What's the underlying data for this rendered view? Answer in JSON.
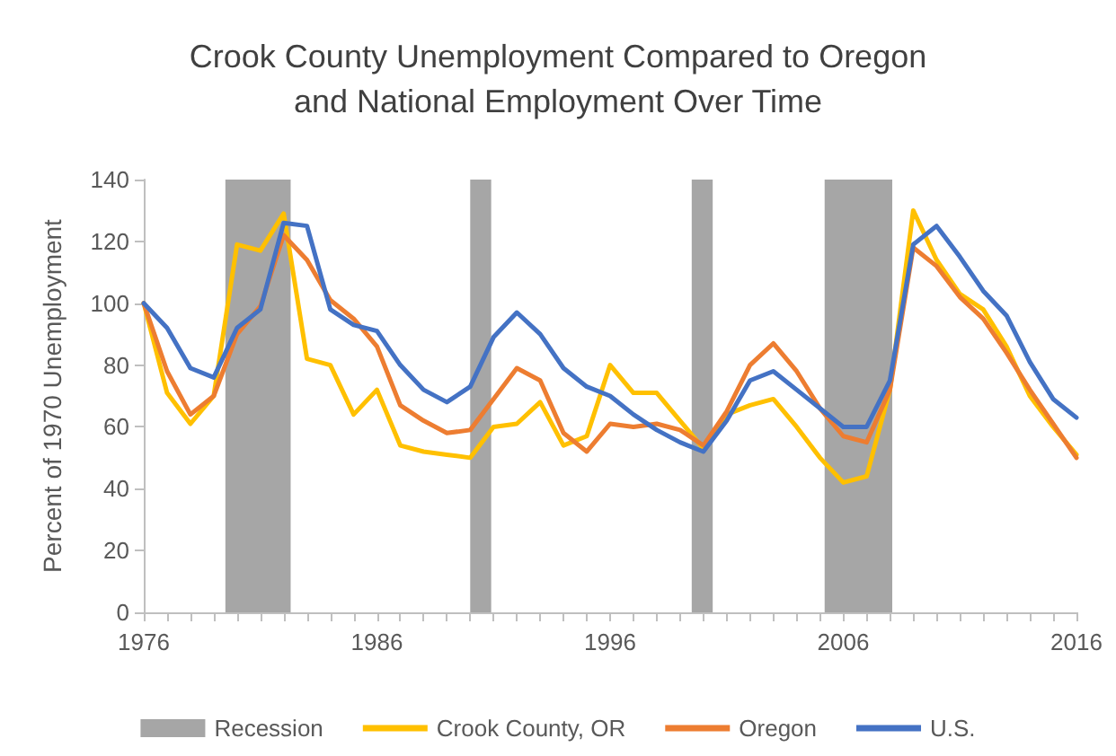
{
  "chart_data": {
    "type": "line",
    "title": "Crook County Unemployment Compared to Oregon\nand National Employment Over Time",
    "ylabel": "Percent of 1970 Unemployment",
    "x": [
      1976,
      1977,
      1978,
      1979,
      1980,
      1981,
      1982,
      1983,
      1984,
      1985,
      1986,
      1987,
      1988,
      1989,
      1990,
      1991,
      1992,
      1993,
      1994,
      1995,
      1996,
      1997,
      1998,
      1999,
      2000,
      2001,
      2002,
      2003,
      2004,
      2005,
      2006,
      2007,
      2008,
      2009,
      2010,
      2011,
      2012,
      2013,
      2014,
      2015,
      2016
    ],
    "series": [
      {
        "name": "Crook County, OR",
        "color": "#ffc000",
        "values": [
          100,
          71,
          61,
          70,
          119,
          117,
          129,
          82,
          80,
          64,
          72,
          54,
          52,
          51,
          50,
          60,
          61,
          68,
          54,
          57,
          80,
          71,
          71,
          62,
          53,
          64,
          67,
          69,
          60,
          50,
          42,
          44,
          72,
          130,
          114,
          103,
          98,
          86,
          70,
          60,
          51
        ]
      },
      {
        "name": "Oregon",
        "color": "#ed7d31",
        "values": [
          100,
          78,
          64,
          70,
          90,
          99,
          122,
          114,
          101,
          95,
          86,
          67,
          62,
          58,
          59,
          69,
          79,
          75,
          58,
          52,
          61,
          60,
          61,
          59,
          54,
          65,
          80,
          87,
          78,
          66,
          57,
          55,
          72,
          118,
          112,
          102,
          95,
          84,
          72,
          61,
          50
        ]
      },
      {
        "name": "U.S.",
        "color": "#4472c4",
        "values": [
          100,
          92,
          79,
          76,
          92,
          98,
          126,
          125,
          98,
          93,
          91,
          80,
          72,
          68,
          73,
          89,
          97,
          90,
          79,
          73,
          70,
          64,
          59,
          55,
          52,
          62,
          75,
          78,
          72,
          66,
          60,
          60,
          75,
          119,
          125,
          115,
          104,
          96,
          81,
          69,
          63
        ]
      }
    ],
    "bands": [
      {
        "axis": "x",
        "from": 1979.5,
        "to": 1982.3,
        "label": "Recession",
        "color": "#a6a6a6"
      },
      {
        "axis": "x",
        "from": 1990,
        "to": 1990.9,
        "color": "#a6a6a6"
      },
      {
        "axis": "x",
        "from": 1999.5,
        "to": 2000.4,
        "color": "#a6a6a6"
      },
      {
        "axis": "x",
        "from": 2005.2,
        "to": 2008.1,
        "color": "#a6a6a6"
      }
    ],
    "xlim": [
      1976,
      2016
    ],
    "xticks": [
      1976,
      {
        "value": 1977,
        "label": null
      },
      {
        "value": 1978,
        "label": null
      },
      {
        "value": 1979,
        "label": null
      },
      {
        "value": 1980,
        "label": null
      },
      {
        "value": 1981,
        "label": null
      },
      {
        "value": 1982,
        "label": null
      },
      {
        "value": 1983,
        "label": null
      },
      {
        "value": 1984,
        "label": null
      },
      {
        "value": 1985,
        "label": null
      },
      1986,
      {
        "value": 1987,
        "label": null
      },
      {
        "value": 1988,
        "label": null
      },
      {
        "value": 1989,
        "label": null
      },
      {
        "value": 1990,
        "label": null
      },
      {
        "value": 1991,
        "label": null
      },
      {
        "value": 1992,
        "label": null
      },
      {
        "value": 1993,
        "label": null
      },
      {
        "value": 1994,
        "label": null
      },
      {
        "value": 1995,
        "label": null
      },
      1996,
      {
        "value": 1997,
        "label": null
      },
      {
        "value": 1998,
        "label": null
      },
      {
        "value": 1999,
        "label": null
      },
      {
        "value": 2000,
        "label": null
      },
      {
        "value": 2001,
        "label": null
      },
      {
        "value": 2002,
        "label": null
      },
      {
        "value": 2003,
        "label": null
      },
      {
        "value": 2004,
        "label": null
      },
      {
        "value": 2005,
        "label": null
      },
      2006,
      {
        "value": 2007,
        "label": null
      },
      {
        "value": 2008,
        "label": null
      },
      {
        "value": 2009,
        "label": null
      },
      {
        "value": 2010,
        "label": null
      },
      {
        "value": 2011,
        "label": null
      },
      {
        "value": 2012,
        "label": null
      },
      {
        "value": 2013,
        "label": null
      },
      {
        "value": 2014,
        "label": null
      },
      {
        "value": 2015,
        "label": null
      },
      2016
    ],
    "ylim": [
      0,
      140
    ],
    "yticks": [
      0,
      20,
      40,
      60,
      80,
      100,
      120,
      140
    ],
    "grid": false,
    "legend": "bottom",
    "marker": "none",
    "line_style": "solid"
  }
}
